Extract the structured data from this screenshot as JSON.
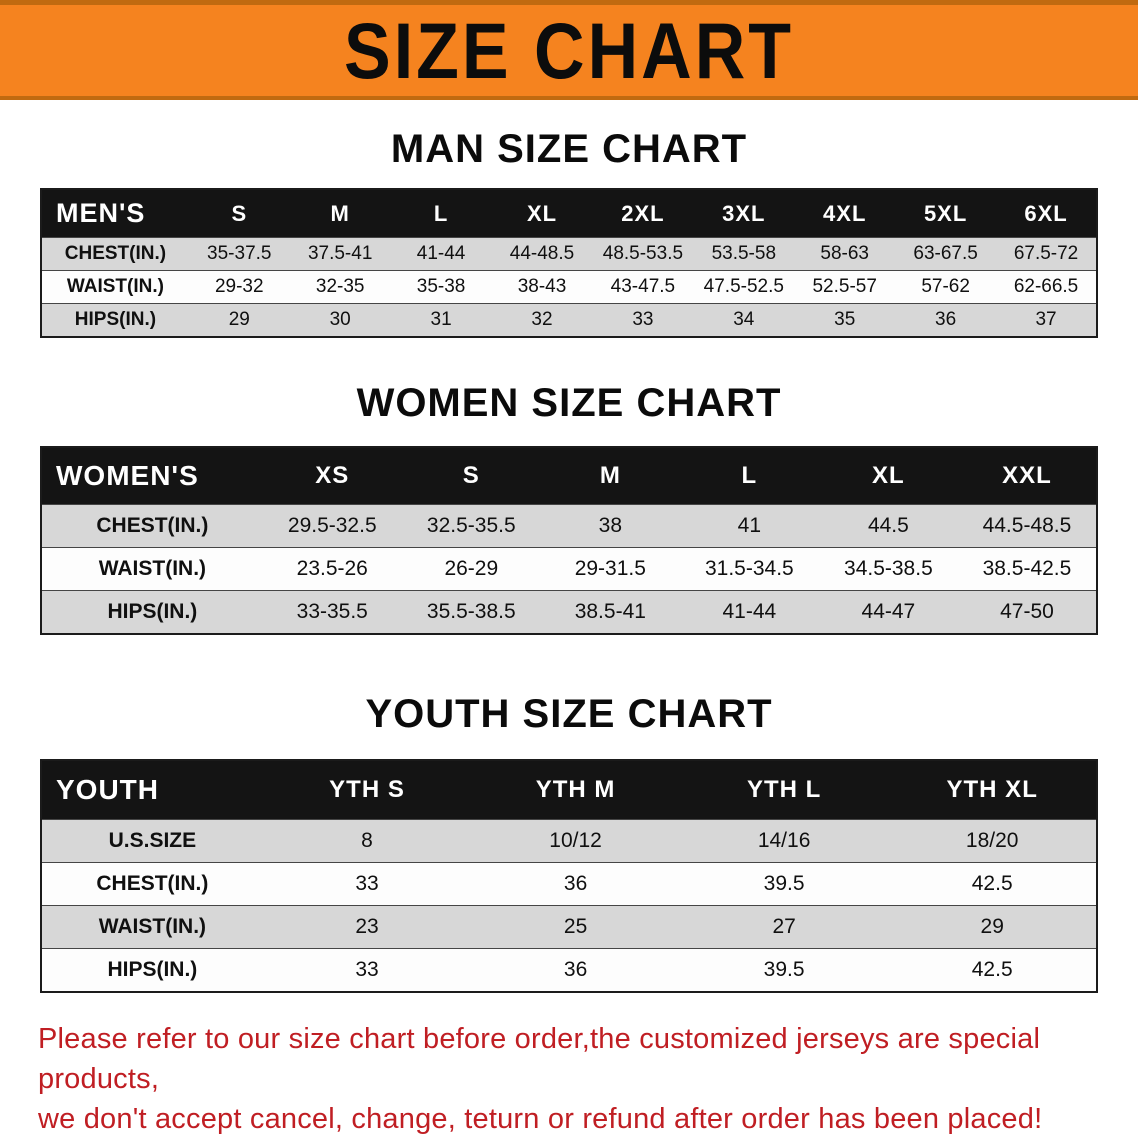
{
  "colors": {
    "banner_orange": "#f5831f",
    "banner_edge": "#c06a10",
    "table_header_bg": "#141414",
    "row_alt": "#d7d7d7",
    "footer_red": "#c01e23"
  },
  "banner": {
    "title": "SIZE CHART"
  },
  "sections": [
    {
      "id": "men",
      "heading": "MAN SIZE CHART",
      "table": {
        "corner": "MEN'S",
        "columns": [
          "S",
          "M",
          "L",
          "XL",
          "2XL",
          "3XL",
          "4XL",
          "5XL",
          "6XL"
        ],
        "rows": [
          {
            "label": "CHEST(IN.)",
            "values": [
              "35-37.5",
              "37.5-41",
              "41-44",
              "44-48.5",
              "48.5-53.5",
              "53.5-58",
              "58-63",
              "63-67.5",
              "67.5-72"
            ]
          },
          {
            "label": "WAIST(IN.)",
            "values": [
              "29-32",
              "32-35",
              "35-38",
              "38-43",
              "43-47.5",
              "47.5-52.5",
              "52.5-57",
              "57-62",
              "62-66.5"
            ]
          },
          {
            "label": "HIPS(IN.)",
            "values": [
              "29",
              "30",
              "31",
              "32",
              "33",
              "34",
              "35",
              "36",
              "37"
            ]
          }
        ]
      }
    },
    {
      "id": "women",
      "heading": "WOMEN SIZE CHART",
      "table": {
        "corner": "WOMEN'S",
        "columns": [
          "XS",
          "S",
          "M",
          "L",
          "XL",
          "XXL"
        ],
        "rows": [
          {
            "label": "CHEST(IN.)",
            "values": [
              "29.5-32.5",
              "32.5-35.5",
              "38",
              "41",
              "44.5",
              "44.5-48.5"
            ]
          },
          {
            "label": "WAIST(IN.)",
            "values": [
              "23.5-26",
              "26-29",
              "29-31.5",
              "31.5-34.5",
              "34.5-38.5",
              "38.5-42.5"
            ]
          },
          {
            "label": "HIPS(IN.)",
            "values": [
              "33-35.5",
              "35.5-38.5",
              "38.5-41",
              "41-44",
              "44-47",
              "47-50"
            ]
          }
        ]
      }
    },
    {
      "id": "youth",
      "heading": "YOUTH SIZE CHART",
      "table": {
        "corner": "YOUTH",
        "columns": [
          "YTH S",
          "YTH M",
          "YTH L",
          "YTH XL"
        ],
        "rows": [
          {
            "label": "U.S.SIZE",
            "values": [
              "8",
              "10/12",
              "14/16",
              "18/20"
            ]
          },
          {
            "label": "CHEST(IN.)",
            "values": [
              "33",
              "36",
              "39.5",
              "42.5"
            ]
          },
          {
            "label": "WAIST(IN.)",
            "values": [
              "23",
              "25",
              "27",
              "29"
            ]
          },
          {
            "label": "HIPS(IN.)",
            "values": [
              "33",
              "36",
              "39.5",
              "42.5"
            ]
          }
        ]
      }
    }
  ],
  "footer": {
    "line1": "Please refer to our size chart before order,the customized jerseys are special products,",
    "line2": "we don't accept cancel, change, teturn or refund after order has been placed!"
  }
}
